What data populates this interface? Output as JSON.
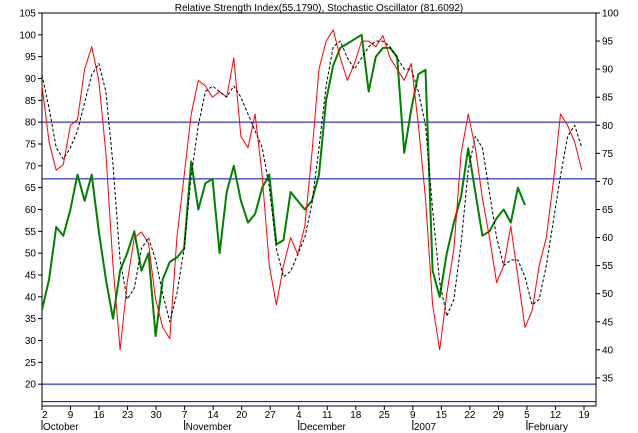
{
  "chart_data": {
    "type": "line",
    "title": "Relative Strength Index(55.1790), Stochastic Oscillator (81.6092)",
    "x_tick_labels": [
      "2",
      "9",
      "16",
      "23",
      "30",
      "7",
      "14",
      "20",
      "27",
      "4",
      "11",
      "18",
      "25",
      "9",
      "15",
      "22",
      "29",
      "5",
      "12",
      "19"
    ],
    "month_labels": [
      "October",
      "November",
      "December",
      "2007",
      "February"
    ],
    "y_left": {
      "ylim": [
        15,
        105
      ],
      "ticks": [
        20,
        25,
        30,
        35,
        40,
        45,
        50,
        55,
        60,
        65,
        70,
        75,
        80,
        85,
        90,
        95,
        100,
        105
      ]
    },
    "y_right": {
      "ylim": [
        30,
        100
      ],
      "ticks": [
        35,
        40,
        45,
        50,
        55,
        60,
        65,
        70,
        75,
        80,
        85,
        90,
        95,
        100
      ]
    },
    "reference_lines_left": [
      80,
      67,
      20,
      16
    ],
    "x_range": [
      0,
      78
    ],
    "series": [
      {
        "id": "rsi",
        "color": "#008000",
        "axis": "left",
        "x": [
          0,
          1,
          2,
          3,
          4,
          5,
          6,
          7,
          8,
          9,
          10,
          11,
          12,
          13,
          14,
          15,
          16,
          17,
          18,
          19,
          20,
          21,
          22,
          23,
          24,
          25,
          26,
          27,
          28,
          29,
          30,
          31,
          32,
          33,
          34,
          35,
          36,
          37,
          38,
          39,
          40,
          41,
          42,
          43,
          44,
          45,
          46,
          47,
          48,
          49,
          50,
          51,
          52,
          53,
          54,
          55,
          56,
          57,
          58,
          59,
          60,
          61,
          62,
          63,
          64,
          65,
          66,
          67,
          68
        ],
        "values": [
          37,
          44,
          56,
          54,
          60,
          68,
          62,
          68,
          55,
          44,
          35,
          46,
          50,
          55,
          46,
          50,
          31,
          44,
          48,
          49,
          51,
          71,
          60,
          66,
          67,
          50,
          64,
          70,
          62,
          57,
          59,
          65,
          68,
          52,
          53,
          64,
          62,
          60,
          62,
          68,
          85,
          93,
          97,
          98,
          99,
          100,
          87,
          95,
          97,
          97,
          95,
          73,
          83,
          91,
          92,
          46,
          40,
          50,
          57,
          63,
          74,
          64,
          54,
          55,
          58,
          60,
          57,
          65,
          61
        ]
      },
      {
        "id": "stoch-k",
        "color": "#ff0000",
        "axis": "right",
        "x": [
          0,
          1,
          2,
          3,
          4,
          5,
          6,
          7,
          8,
          9,
          10,
          11,
          12,
          13,
          14,
          15,
          16,
          17,
          18,
          19,
          20,
          21,
          22,
          23,
          24,
          25,
          26,
          27,
          28,
          29,
          30,
          31,
          32,
          33,
          34,
          35,
          36,
          37,
          38,
          39,
          40,
          41,
          42,
          43,
          44,
          45,
          46,
          47,
          48,
          49,
          50,
          51,
          52,
          53,
          54,
          55,
          56,
          57,
          58,
          59,
          60,
          61,
          62,
          63,
          64,
          65,
          66,
          67,
          68,
          69,
          70,
          71,
          72,
          73,
          74,
          75,
          76
        ],
        "values": [
          87,
          77,
          72,
          73,
          80,
          81,
          90,
          94,
          88,
          75,
          55,
          40,
          52,
          60,
          61,
          59,
          49,
          44,
          42,
          60,
          71,
          82,
          88,
          87,
          85,
          86,
          85,
          92,
          78,
          76,
          82,
          71,
          55,
          48,
          55,
          60,
          57,
          62,
          75,
          90,
          95,
          97,
          92,
          88,
          91,
          95,
          95,
          94,
          96,
          92,
          90,
          88,
          91,
          80,
          67,
          48,
          40,
          50,
          58,
          75,
          82,
          76,
          67,
          60,
          52,
          55,
          62,
          53,
          44,
          47,
          55,
          60,
          70,
          82,
          80,
          77,
          72
        ]
      },
      {
        "id": "stoch-d",
        "color": "#000000",
        "dashed": true,
        "axis": "right",
        "x": [
          0,
          1,
          2,
          3,
          4,
          5,
          6,
          7,
          8,
          9,
          10,
          11,
          12,
          13,
          14,
          15,
          16,
          17,
          18,
          19,
          20,
          21,
          22,
          23,
          24,
          25,
          26,
          27,
          28,
          29,
          30,
          31,
          32,
          33,
          34,
          35,
          36,
          37,
          38,
          39,
          40,
          41,
          42,
          43,
          44,
          45,
          46,
          47,
          48,
          49,
          50,
          51,
          52,
          53,
          54,
          55,
          56,
          57,
          58,
          59,
          60,
          61,
          62,
          63,
          64,
          65,
          66,
          67,
          68,
          69,
          70,
          71,
          72,
          73,
          74,
          75,
          76
        ],
        "values": [
          89,
          83,
          76,
          74,
          76,
          79,
          84,
          89,
          91,
          86,
          73,
          56,
          49,
          51,
          58,
          60,
          56,
          50,
          45,
          50,
          58,
          71,
          80,
          86,
          87,
          86,
          85,
          87,
          85,
          82,
          79,
          76,
          69,
          58,
          53,
          54,
          57,
          60,
          66,
          76,
          87,
          94,
          95,
          92,
          90,
          92,
          94,
          95,
          95,
          94,
          92,
          90,
          90,
          86,
          80,
          65,
          52,
          46,
          49,
          59,
          72,
          78,
          76,
          68,
          60,
          55,
          56,
          56,
          53,
          48,
          49,
          55,
          63,
          71,
          78,
          80,
          76
        ]
      }
    ]
  }
}
